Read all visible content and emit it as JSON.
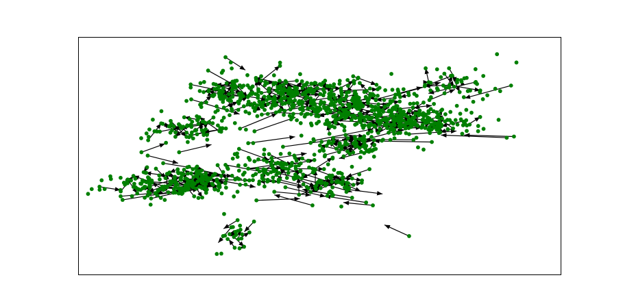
{
  "chart_data": {
    "type": "scatter",
    "title": "",
    "xlabel": "",
    "ylabel": "",
    "xlim": [
      0,
      100
    ],
    "ylim": [
      0,
      100
    ],
    "grid": false,
    "legend": "none",
    "colors": {
      "node": "#007f00",
      "edge": "#000000",
      "frame": "#000000"
    },
    "nodes": [
      [
        82.3,
        81.1
      ],
      [
        89.6,
        79.6
      ],
      [
        72.7,
        73.5
      ],
      [
        66.5,
        76.1
      ],
      [
        88.7,
        57.7
      ],
      [
        90.2,
        58.2
      ],
      [
        69.4,
        56.8
      ],
      [
        73.2,
        55.9
      ],
      [
        68.5,
        59.2
      ],
      [
        61.6,
        73.8
      ],
      [
        41.5,
        40.1
      ],
      [
        42.9,
        36.9
      ],
      [
        48.5,
        29.3
      ],
      [
        56.7,
        32.5
      ],
      [
        59.6,
        30.5
      ],
      [
        61.0,
        29.3
      ],
      [
        68.5,
        16.4
      ],
      [
        33.0,
        23.1
      ],
      [
        31.7,
        20.1
      ],
      [
        28.7,
        8.9
      ],
      [
        32.4,
        11.5
      ],
      [
        30.0,
        16.4
      ],
      [
        36.4,
        22.5
      ],
      [
        20.9,
        51.6
      ],
      [
        14.4,
        33.4
      ],
      [
        15.1,
        32.2
      ],
      [
        8.8,
        33.1
      ],
      [
        9.2,
        31.6
      ],
      [
        15.0,
        29.6
      ],
      [
        16.1,
        44.7
      ],
      [
        14.4,
        50.2
      ],
      [
        17.6,
        47.0
      ],
      [
        13.1,
        51.6
      ],
      [
        23.4,
        73.8
      ],
      [
        23.3,
        78.8
      ],
      [
        30.5,
        91.5
      ],
      [
        31.6,
        89.3
      ],
      [
        26.9,
        85.9
      ],
      [
        42.4,
        53.9
      ],
      [
        35.2,
        55.4
      ],
      [
        36.5,
        47.8
      ],
      [
        33.3,
        53.0
      ],
      [
        30.5,
        46.3
      ],
      [
        25.6,
        41.2
      ],
      [
        22.6,
        45.3
      ],
      [
        19.2,
        38.4
      ],
      [
        12.5,
        35.9
      ],
      [
        34.3,
        70.9
      ],
      [
        36.5,
        60.4
      ],
      [
        33.5,
        61.5
      ],
      [
        38.0,
        67.4
      ],
      [
        31.2,
        76.0
      ],
      [
        36.8,
        82.8
      ],
      [
        41.7,
        81.6
      ],
      [
        47.1,
        67.4
      ],
      [
        53.2,
        64.9
      ],
      [
        55.5,
        66.5
      ],
      [
        57.4,
        66.0
      ],
      [
        62.4,
        64.4
      ],
      [
        55.7,
        55.0
      ],
      [
        48.8,
        56.5
      ],
      [
        51.1,
        50.4
      ],
      [
        60.3,
        44.5
      ],
      [
        61.0,
        52.5
      ],
      [
        43.5,
        44.5
      ],
      [
        48.5,
        44.7
      ],
      [
        38.8,
        44.2
      ],
      [
        55.7,
        36.0
      ],
      [
        41.5,
        78.5
      ],
      [
        46.4,
        72.7
      ],
      [
        44.0,
        77.4
      ],
      [
        65.1,
        69.6
      ],
      [
        71.5,
        64.9
      ],
      [
        60.6,
        63.0
      ],
      [
        51.6,
        68.0
      ],
      [
        40.6,
        35.0
      ],
      [
        36.9,
        31.4
      ],
      [
        38.1,
        40.7
      ],
      [
        50.3,
        38.6
      ],
      [
        52.3,
        40.7
      ]
    ],
    "edges": [
      [
        14.4,
        33.4,
        24.9,
        36.0
      ],
      [
        9.2,
        31.6,
        21.5,
        35.7
      ],
      [
        15.1,
        32.2,
        27.7,
        37.9
      ],
      [
        23.4,
        73.8,
        33.4,
        67.6
      ],
      [
        26.9,
        85.9,
        33.3,
        78.7
      ],
      [
        30.5,
        91.5,
        34.6,
        86.1
      ],
      [
        82.3,
        81.1,
        72.5,
        76.3
      ],
      [
        89.6,
        79.6,
        80.0,
        74.3
      ],
      [
        88.7,
        57.7,
        75.1,
        58.8
      ],
      [
        90.2,
        58.2,
        79.9,
        58.8
      ],
      [
        69.4,
        56.8,
        54.6,
        57.0
      ],
      [
        73.2,
        55.9,
        61.2,
        56.3
      ],
      [
        56.7,
        32.5,
        46.4,
        36.0
      ],
      [
        59.6,
        30.5,
        51.1,
        33.2
      ],
      [
        68.5,
        16.4,
        63.4,
        21.1
      ],
      [
        61.0,
        29.3,
        54.9,
        30.5
      ],
      [
        48.5,
        29.3,
        40.6,
        33.7
      ],
      [
        33.0,
        23.1,
        30.1,
        19.5
      ],
      [
        31.7,
        20.1,
        29.0,
        13.6
      ],
      [
        32.4,
        11.5,
        31.2,
        15.0
      ],
      [
        36.4,
        22.5,
        34.4,
        18.2
      ],
      [
        16.1,
        44.7,
        18.2,
        40.7
      ],
      [
        14.4,
        50.2,
        20.7,
        47.0
      ],
      [
        17.6,
        47.0,
        26.0,
        44.3
      ],
      [
        20.9,
        51.6,
        27.6,
        54.8
      ],
      [
        25.6,
        41.2,
        36.7,
        37.0
      ],
      [
        22.6,
        45.3,
        33.9,
        40.3
      ],
      [
        19.2,
        38.4,
        28.0,
        37.8
      ],
      [
        30.5,
        46.3,
        39.6,
        42.8
      ],
      [
        33.3,
        53.0,
        39.5,
        48.4
      ],
      [
        35.2,
        55.4,
        44.9,
        58.1
      ],
      [
        36.5,
        47.8,
        47.3,
        51.1
      ],
      [
        42.4,
        53.9,
        53.5,
        57.0
      ],
      [
        48.8,
        56.5,
        61.1,
        61.4
      ],
      [
        55.7,
        55.0,
        67.3,
        61.2
      ],
      [
        51.1,
        50.4,
        59.5,
        55.1
      ],
      [
        60.3,
        44.5,
        55.5,
        41.2
      ],
      [
        61.0,
        52.5,
        54.0,
        49.0
      ],
      [
        38.8,
        44.2,
        51.0,
        38.0
      ],
      [
        43.5,
        44.5,
        52.7,
        38.7
      ],
      [
        48.5,
        44.7,
        54.3,
        40.4
      ],
      [
        38.1,
        40.7,
        46.5,
        36.9
      ],
      [
        40.6,
        35.0,
        48.2,
        33.6
      ],
      [
        36.9,
        31.4,
        45.9,
        32.1
      ],
      [
        50.3,
        38.6,
        56.7,
        34.9
      ],
      [
        52.3,
        40.7,
        58.5,
        35.2
      ],
      [
        34.3,
        70.9,
        41.7,
        72.5
      ],
      [
        36.5,
        60.4,
        45.0,
        66.3
      ],
      [
        33.5,
        61.5,
        41.2,
        67.9
      ],
      [
        38.0,
        67.4,
        47.3,
        70.8
      ],
      [
        31.2,
        76.0,
        39.1,
        73.9
      ],
      [
        36.8,
        82.8,
        44.4,
        79.4
      ],
      [
        41.7,
        81.6,
        50.0,
        76.9
      ],
      [
        47.1,
        67.4,
        56.7,
        68.0
      ],
      [
        53.2,
        64.9,
        61.9,
        64.0
      ],
      [
        55.5,
        66.5,
        64.4,
        70.4
      ],
      [
        57.4,
        66.0,
        66.0,
        62.4
      ],
      [
        62.4,
        64.4,
        70.1,
        68.6
      ],
      [
        65.1,
        69.6,
        73.2,
        71.2
      ],
      [
        71.5,
        64.9,
        75.5,
        66.8
      ],
      [
        60.6,
        63.0,
        69.0,
        62.2
      ],
      [
        51.6,
        68.0,
        59.8,
        72.6
      ],
      [
        44.0,
        77.4,
        52.8,
        78.0
      ],
      [
        46.4,
        72.7,
        54.9,
        75.3
      ],
      [
        41.5,
        78.5,
        49.8,
        80.0
      ],
      [
        61.6,
        73.8,
        71.2,
        78.9
      ],
      [
        66.5,
        76.1,
        75.0,
        80.9
      ],
      [
        72.7,
        73.5,
        78.0,
        78.0
      ],
      [
        12.5,
        35.9,
        21.0,
        40.9
      ],
      [
        13.1,
        51.6,
        18.0,
        55.2
      ],
      [
        8.8,
        33.1,
        17.5,
        34.8
      ],
      [
        55.7,
        36.0,
        63.0,
        34.1
      ],
      [
        41.5,
        40.1,
        49.3,
        36.2
      ],
      [
        42.9,
        36.9,
        51.2,
        33.0
      ],
      [
        68.5,
        59.2,
        78.3,
        60.5
      ]
    ],
    "clusters": [
      {
        "cx": 58.0,
        "cy": 70.0,
        "sx": 8.0,
        "sy": 5.0,
        "n": 260
      },
      {
        "cx": 45.0,
        "cy": 76.0,
        "sx": 7.0,
        "sy": 4.5,
        "n": 220
      },
      {
        "cx": 70.0,
        "cy": 64.5,
        "sx": 6.0,
        "sy": 2.6,
        "n": 170
      },
      {
        "cx": 30.5,
        "cy": 75.5,
        "sx": 3.5,
        "sy": 4.0,
        "n": 80
      },
      {
        "cx": 23.0,
        "cy": 61.5,
        "sx": 4.5,
        "sy": 3.0,
        "n": 70
      },
      {
        "cx": 17.0,
        "cy": 38.0,
        "sx": 5.5,
        "sy": 2.5,
        "n": 120
      },
      {
        "cx": 26.5,
        "cy": 39.5,
        "sx": 4.0,
        "sy": 3.2,
        "n": 90
      },
      {
        "cx": 41.0,
        "cy": 45.0,
        "sx": 5.0,
        "sy": 4.0,
        "n": 100
      },
      {
        "cx": 52.5,
        "cy": 38.0,
        "sx": 3.5,
        "sy": 3.0,
        "n": 55
      },
      {
        "cx": 58.0,
        "cy": 54.5,
        "sx": 5.0,
        "sy": 2.2,
        "n": 70
      },
      {
        "cx": 77.0,
        "cy": 79.0,
        "sx": 5.0,
        "sy": 4.5,
        "n": 45
      },
      {
        "cx": 32.5,
        "cy": 17.0,
        "sx": 1.6,
        "sy": 3.5,
        "n": 18
      }
    ]
  }
}
